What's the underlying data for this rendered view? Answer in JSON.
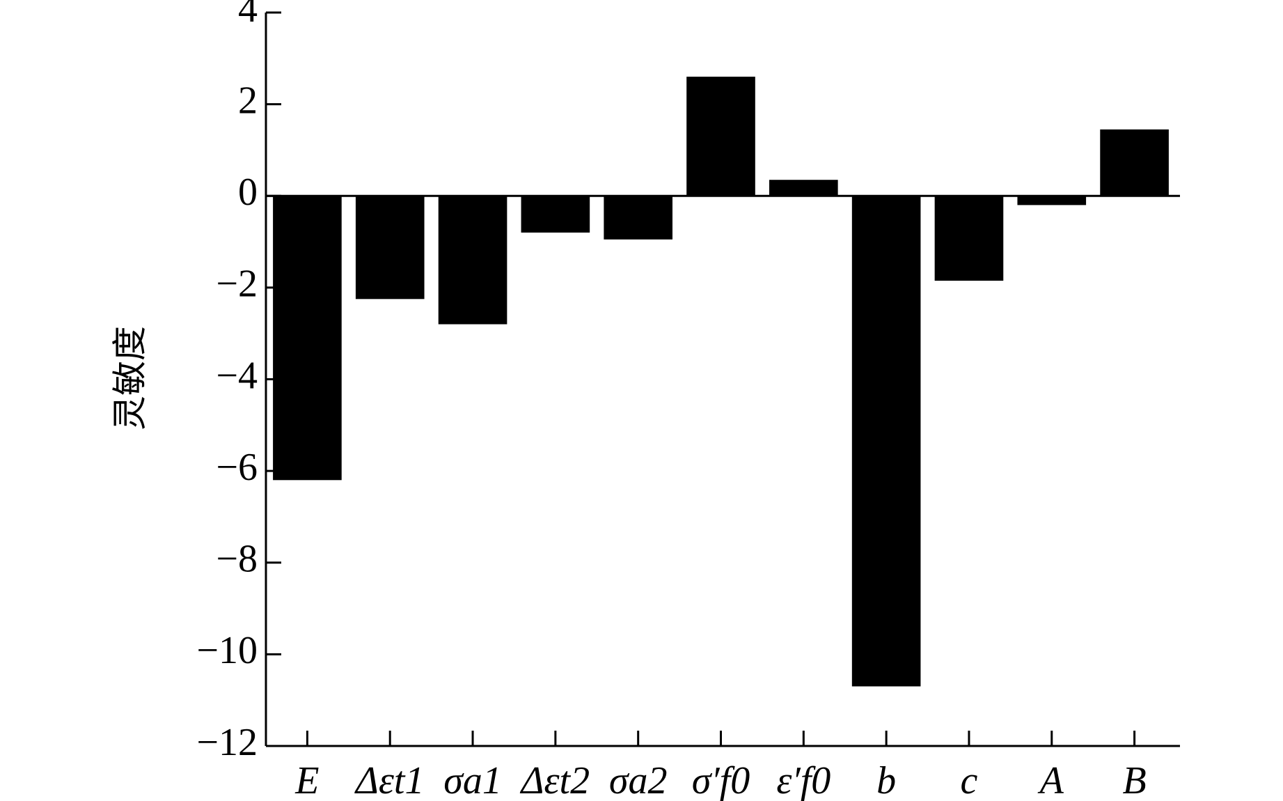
{
  "chart_data": {
    "type": "bar",
    "y_label": "灵敏度",
    "categories": [
      "E",
      "Δεt1",
      "σa1",
      "Δεt2",
      "σa2",
      "σ′f0",
      "ε′f0",
      "b",
      "c",
      "A",
      "B"
    ],
    "values": [
      -6.2,
      -2.25,
      -2.8,
      -0.8,
      -0.95,
      2.6,
      0.35,
      -10.7,
      -1.85,
      -0.2,
      1.45
    ],
    "color": "#000000",
    "ylim": [
      -12,
      4
    ],
    "yticks": [
      {
        "value": -12,
        "label": "−12"
      },
      {
        "value": -10,
        "label": "−10"
      },
      {
        "value": -8,
        "label": "−8"
      },
      {
        "value": -6,
        "label": "−6"
      },
      {
        "value": -4,
        "label": "−4"
      },
      {
        "value": -2,
        "label": "−2"
      },
      0,
      2,
      4
    ],
    "grid": false
  }
}
